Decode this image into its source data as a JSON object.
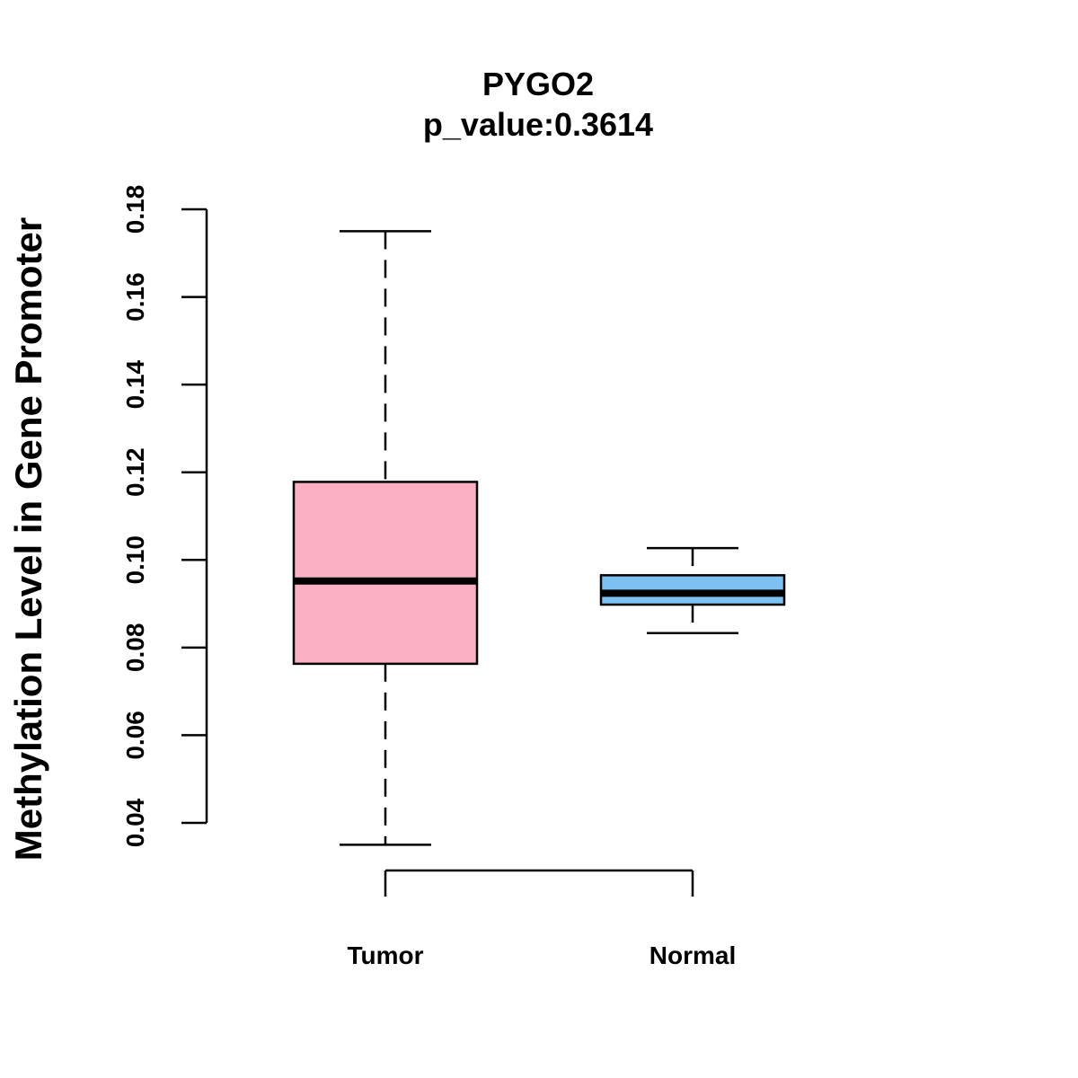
{
  "chart_data": {
    "type": "boxplot",
    "title": "PYGO2",
    "subtitle": "p_value:0.3614",
    "ylabel": "Methylation Level in Gene Promoter",
    "xlabel": "",
    "ylim": [
      0.04,
      0.18
    ],
    "yticks": [
      0.04,
      0.06,
      0.08,
      0.1,
      0.12,
      0.14,
      0.16,
      0.18
    ],
    "ytick_labels": [
      "0.04",
      "0.06",
      "0.08",
      "0.10",
      "0.12",
      "0.14",
      "0.16",
      "0.18"
    ],
    "categories": [
      "Tumor",
      "Normal"
    ],
    "groups": [
      {
        "name": "Tumor",
        "whisker_low": 0.035,
        "q1": 0.0763,
        "median": 0.0952,
        "q3": 0.1178,
        "whisker_high": 0.175,
        "color": "#FBB1C3"
      },
      {
        "name": "Normal",
        "whisker_low": 0.0833,
        "q1": 0.0898,
        "median": 0.0924,
        "q3": 0.0965,
        "whisker_high": 0.1027,
        "color": "#7DC1F2"
      }
    ],
    "bracket": {
      "from": "Tumor",
      "to": "Normal"
    },
    "grid": false
  }
}
